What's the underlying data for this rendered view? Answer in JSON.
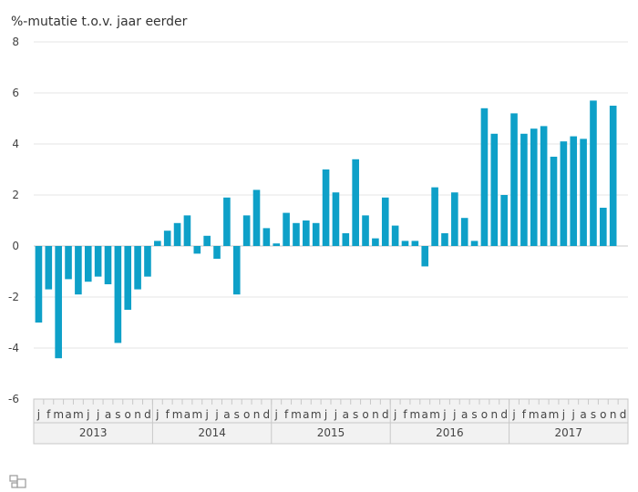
{
  "chart_data": {
    "type": "bar",
    "ylabel": "%-mutatie t.o.v. jaar eerder",
    "ylim": [
      -6,
      8
    ],
    "yticks": [
      -6,
      -4,
      -2,
      0,
      2,
      4,
      6,
      8
    ],
    "grid": true,
    "bar_color": "#0ea0c8",
    "month_letters": [
      "j",
      "f",
      "m",
      "a",
      "m",
      "j",
      "j",
      "a",
      "s",
      "o",
      "n",
      "d"
    ],
    "years": [
      "2013",
      "2014",
      "2015",
      "2016",
      "2017"
    ],
    "values": [
      -3.0,
      -1.7,
      -4.4,
      -1.3,
      -1.9,
      -1.4,
      -1.2,
      -1.5,
      -3.8,
      -2.5,
      -1.7,
      -1.2,
      0.2,
      0.6,
      0.9,
      1.2,
      -0.3,
      0.4,
      -0.5,
      1.9,
      -1.9,
      1.2,
      2.2,
      0.7,
      0.1,
      1.3,
      0.9,
      1.0,
      0.9,
      3.0,
      2.1,
      0.5,
      3.4,
      1.2,
      0.3,
      1.9,
      0.8,
      0.2,
      0.2,
      -0.8,
      2.3,
      0.5,
      2.1,
      1.1,
      0.2,
      5.4,
      4.4,
      2.0,
      5.2,
      4.4,
      4.6,
      4.7,
      3.5,
      4.1,
      4.3,
      4.2,
      5.7,
      1.5,
      5.5
    ]
  }
}
